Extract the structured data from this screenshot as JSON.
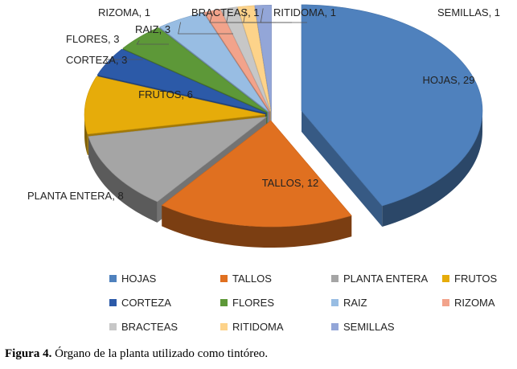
{
  "chart_data": {
    "type": "pie",
    "style": "3d-exploded",
    "categories": [
      "HOJAS",
      "TALLOS",
      "PLANTA ENTERA",
      "FRUTOS",
      "CORTEZA",
      "FLORES",
      "RAIZ",
      "RIZOMA",
      "BRACTEAS",
      "RITIDOMA",
      "SEMILLAS"
    ],
    "values": [
      29,
      12,
      8,
      6,
      3,
      3,
      3,
      1,
      1,
      1,
      1
    ],
    "data_labels": [
      "HOJAS, 29",
      "TALLOS, 12",
      "PLANTA ENTERA, 8",
      "FRUTOS, 6",
      "CORTEZA, 3",
      "FLORES, 3",
      "RAIZ, 3",
      "RIZOMA, 1",
      "BRACTEAS, 1",
      "RITIDOMA, 1",
      "SEMILLAS, 1"
    ],
    "colors": [
      "#4f81bd",
      "#e07020",
      "#a5a5a5",
      "#e6ac0a",
      "#2c5aa8",
      "#5d9838",
      "#98bde3",
      "#f2a38b",
      "#c7c7c7",
      "#fdd38a",
      "#93a6d8"
    ],
    "legend_position": "bottom"
  },
  "caption": {
    "label": "Figura 4.",
    "text": "Órgano de la planta utilizado como tintóreo."
  }
}
